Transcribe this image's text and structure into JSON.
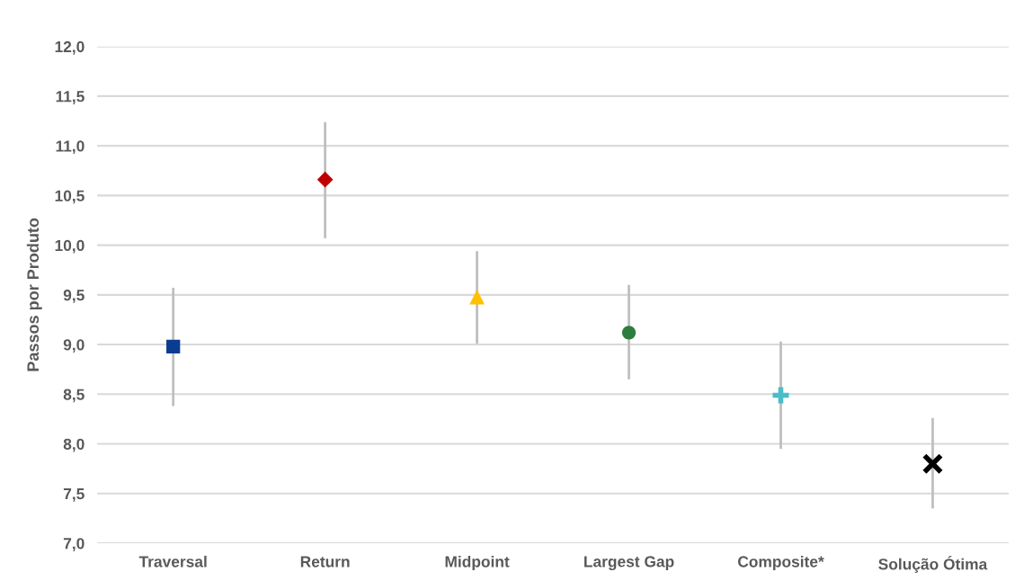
{
  "chart_data": {
    "type": "scatter",
    "ylabel": "Passos por Produto",
    "categories": [
      "Traversal",
      "Return",
      "Midpoint",
      "Largest Gap",
      "Composite*",
      "Solução Ótima"
    ],
    "series": [
      {
        "color": "#0a3d91",
        "marker": "square",
        "values": [
          8.98,
          null,
          null,
          null,
          null,
          null
        ],
        "errors": [
          [
            8.38,
            9.57
          ],
          null,
          null,
          null,
          null,
          null
        ]
      },
      {
        "color": "#c00000",
        "marker": "diamond",
        "values": [
          null,
          10.66,
          null,
          null,
          null,
          null
        ],
        "errors": [
          null,
          [
            10.07,
            11.24
          ],
          null,
          null,
          null,
          null
        ]
      },
      {
        "color": "#ffc000",
        "marker": "triangle",
        "values": [
          null,
          null,
          9.48,
          null,
          null,
          null
        ],
        "errors": [
          null,
          null,
          [
            9.01,
            9.94
          ],
          null,
          null,
          null
        ]
      },
      {
        "color": "#2e7d3e",
        "marker": "circle",
        "values": [
          null,
          null,
          null,
          9.12,
          null,
          null
        ],
        "errors": [
          null,
          null,
          null,
          [
            8.65,
            9.6
          ],
          null,
          null
        ]
      },
      {
        "color": "#4bbcc8",
        "marker": "plus",
        "values": [
          null,
          null,
          null,
          null,
          8.49,
          null
        ],
        "errors": [
          null,
          null,
          null,
          null,
          [
            7.95,
            9.03
          ],
          null
        ]
      },
      {
        "color": "#000000",
        "marker": "cross",
        "values": [
          null,
          null,
          null,
          null,
          null,
          7.8
        ],
        "errors": [
          null,
          null,
          null,
          null,
          null,
          [
            7.35,
            8.26
          ]
        ]
      }
    ],
    "ylim": [
      7.0,
      12.0
    ],
    "yticks": [
      {
        "value": 7.0,
        "label": "7,0"
      },
      {
        "value": 7.5,
        "label": "7,5"
      },
      {
        "value": 8.0,
        "label": "8,0"
      },
      {
        "value": 8.5,
        "label": "8,5"
      },
      {
        "value": 9.0,
        "label": "9,0"
      },
      {
        "value": 9.5,
        "label": "9,5"
      },
      {
        "value": 10.0,
        "label": "10,0"
      },
      {
        "value": 10.5,
        "label": "10,5"
      },
      {
        "value": 11.0,
        "label": "11,0"
      },
      {
        "value": 11.5,
        "label": "11,5"
      },
      {
        "value": 12.0,
        "label": "12,0"
      }
    ],
    "grid": "y",
    "legend": false
  }
}
